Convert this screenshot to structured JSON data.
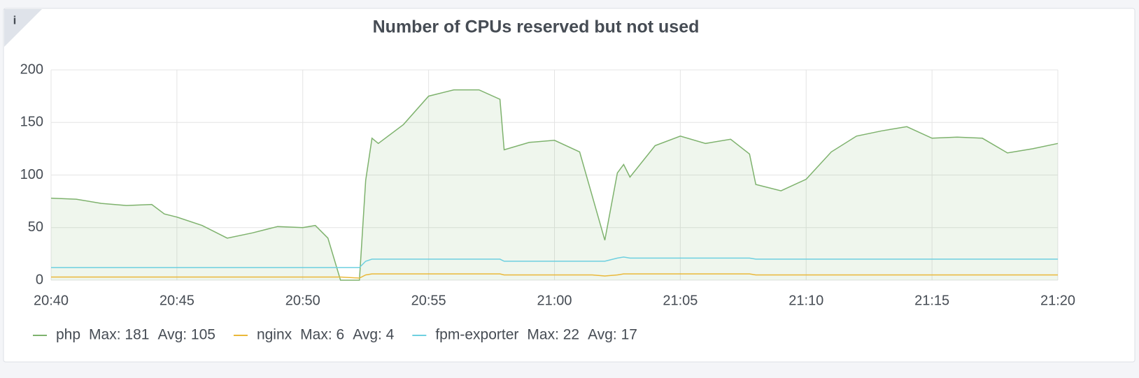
{
  "info_icon": "i",
  "chart_data": {
    "type": "line",
    "title": "Number of CPUs reserved but not used",
    "x": [
      "20:40",
      "20:41",
      "20:42",
      "20:43",
      "20:44",
      "20:44:30",
      "20:45",
      "20:46",
      "20:47",
      "20:48",
      "20:49",
      "20:50",
      "20:50:30",
      "20:51",
      "20:51:30",
      "20:52:15",
      "20:52:30",
      "20:52:45",
      "20:53",
      "20:54",
      "20:55",
      "20:56",
      "20:57",
      "20:57:50",
      "20:58",
      "20:59",
      "21:00",
      "21:01",
      "21:01:30",
      "21:02",
      "21:02:30",
      "21:02:45",
      "21:03",
      "21:04",
      "21:05",
      "21:06",
      "21:07",
      "21:07:45",
      "21:08",
      "21:09",
      "21:10",
      "21:11",
      "21:12",
      "21:13",
      "21:14",
      "21:15",
      "21:16",
      "21:17",
      "21:18",
      "21:19",
      "21:20"
    ],
    "series": [
      {
        "name": "php",
        "color": "#7eb26d",
        "fill": true,
        "values": [
          78,
          77,
          73,
          71,
          72,
          63,
          60,
          52,
          40,
          45,
          51,
          50,
          52,
          40,
          0,
          0,
          95,
          135,
          130,
          148,
          175,
          181,
          181,
          172,
          124,
          131,
          133,
          122,
          80,
          38,
          102,
          110,
          98,
          128,
          137,
          130,
          134,
          120,
          91,
          85,
          96,
          122,
          137,
          142,
          146,
          135,
          136,
          135,
          121,
          125,
          130
        ],
        "legend": [
          {
            "value": 181,
            "label": "Max: 181"
          },
          {
            "value": 105,
            "label": "Avg: 105"
          }
        ]
      },
      {
        "name": "nginx",
        "color": "#eab839",
        "fill": false,
        "values": [
          3,
          3,
          3,
          3,
          3,
          3,
          3,
          3,
          3,
          3,
          3,
          3,
          3,
          3,
          3,
          2,
          5,
          6,
          6,
          6,
          6,
          6,
          6,
          6,
          5,
          5,
          5,
          5,
          5,
          4,
          5,
          6,
          6,
          6,
          6,
          6,
          6,
          6,
          5,
          5,
          5,
          5,
          5,
          5,
          5,
          5,
          5,
          5,
          5,
          5,
          5
        ],
        "legend": [
          {
            "value": 6,
            "label": "Max: 6"
          },
          {
            "value": 4,
            "label": "Avg: 4"
          }
        ]
      },
      {
        "name": "fpm-exporter",
        "color": "#6ed0e0",
        "fill": false,
        "values": [
          12,
          12,
          12,
          12,
          12,
          12,
          12,
          12,
          12,
          12,
          12,
          12,
          12,
          12,
          12,
          12,
          18,
          20,
          20,
          20,
          20,
          20,
          20,
          20,
          18,
          18,
          18,
          18,
          18,
          18,
          21,
          22,
          21,
          21,
          21,
          21,
          21,
          21,
          20,
          20,
          20,
          20,
          20,
          20,
          20,
          20,
          20,
          20,
          20,
          20,
          20
        ],
        "legend": [
          {
            "value": 22,
            "label": "Max: 22"
          },
          {
            "value": 17,
            "label": "Avg: 17"
          }
        ]
      }
    ],
    "xlim": [
      "20:40",
      "21:20"
    ],
    "xticks": [
      "20:40",
      "20:45",
      "20:50",
      "20:55",
      "21:00",
      "21:05",
      "21:10",
      "21:15",
      "21:20"
    ],
    "ylim": [
      0,
      200
    ],
    "yticks": [
      0,
      50,
      100,
      150,
      200
    ],
    "grid": true
  }
}
